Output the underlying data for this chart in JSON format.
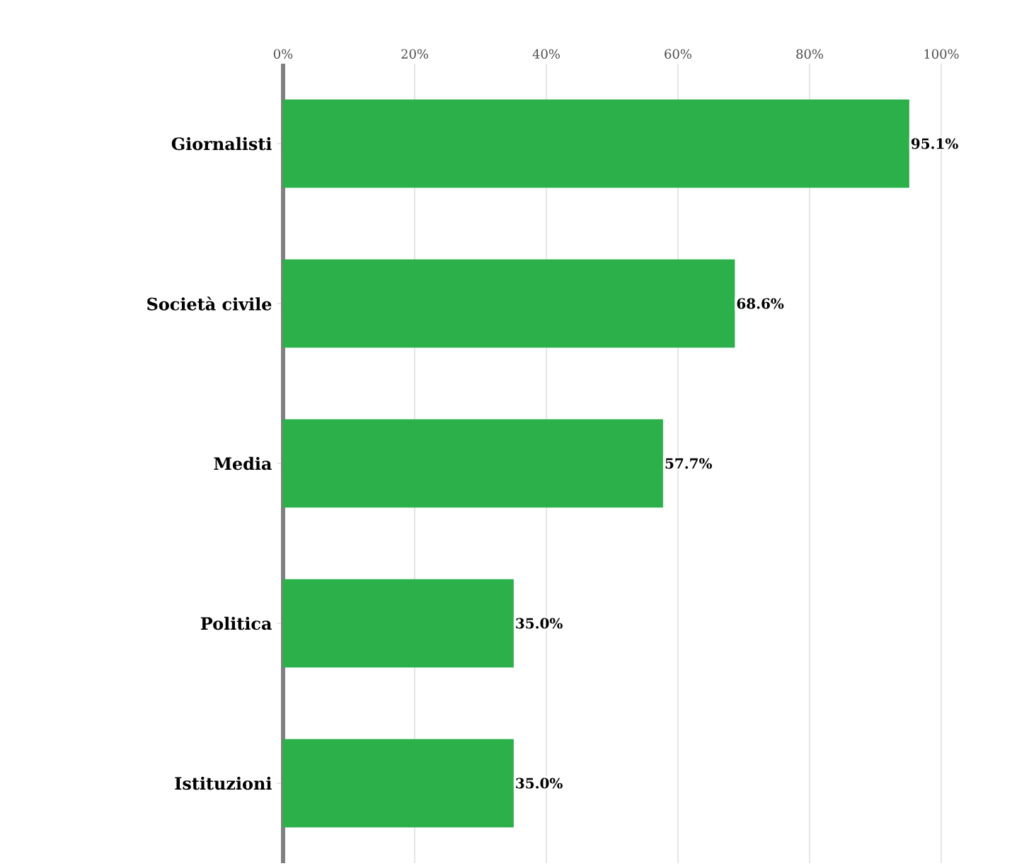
{
  "chart_data": {
    "type": "bar",
    "orientation": "horizontal",
    "categories": [
      "Giornalisti",
      "Società civile",
      "Media",
      "Politica",
      "Istituzioni"
    ],
    "values": [
      95.1,
      68.6,
      57.7,
      35.0,
      35.0
    ],
    "value_labels": [
      "95.1%",
      "68.6%",
      "57.7%",
      "35.0%",
      "35.0%"
    ],
    "color": "#2bb04a",
    "xlim": [
      0,
      100
    ],
    "xticks": [
      {
        "value": 0,
        "label": "0%"
      },
      {
        "value": 20,
        "label": "20%"
      },
      {
        "value": 40,
        "label": "40%"
      },
      {
        "value": 60,
        "label": "60%"
      },
      {
        "value": 80,
        "label": "80%"
      },
      {
        "value": 100,
        "label": "100%"
      }
    ],
    "grid": "x"
  }
}
